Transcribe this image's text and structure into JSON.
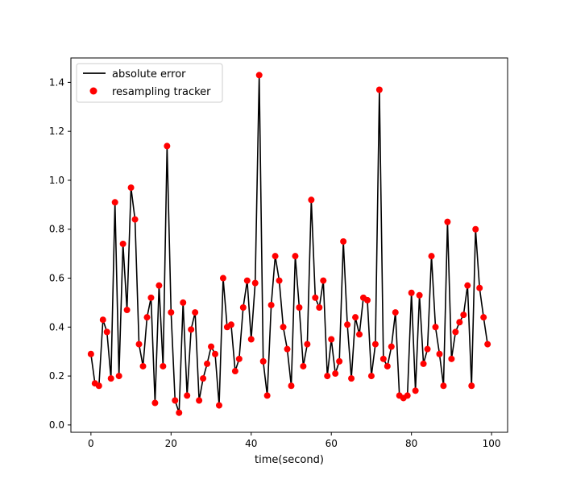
{
  "chart_data": {
    "type": "line",
    "title": "",
    "xlabel": "time(second)",
    "ylabel": "",
    "xlim": [
      -5,
      104
    ],
    "ylim": [
      -0.03,
      1.5
    ],
    "xticks": [
      0,
      20,
      40,
      60,
      80,
      100
    ],
    "xtick_labels": [
      "0",
      "20",
      "40",
      "60",
      "80",
      "100"
    ],
    "yticks": [
      0.0,
      0.2,
      0.4,
      0.6,
      0.8,
      1.0,
      1.2,
      1.4
    ],
    "ytick_labels": [
      "0.0",
      "0.2",
      "0.4",
      "0.6",
      "0.8",
      "1.0",
      "1.2",
      "1.4"
    ],
    "grid": false,
    "legend_position": "upper-left",
    "series": [
      {
        "name": "absolute error",
        "style": "line",
        "color": "#000000",
        "x": [
          0,
          1,
          2,
          3,
          4,
          5,
          6,
          7,
          8,
          9,
          10,
          11,
          12,
          13,
          14,
          15,
          16,
          17,
          18,
          19,
          20,
          21,
          22,
          23,
          24,
          25,
          26,
          27,
          28,
          29,
          30,
          31,
          32,
          33,
          34,
          35,
          36,
          37,
          38,
          39,
          40,
          41,
          42,
          43,
          44,
          45,
          46,
          47,
          48,
          49,
          50,
          51,
          52,
          53,
          54,
          55,
          56,
          57,
          58,
          59,
          60,
          61,
          62,
          63,
          64,
          65,
          66,
          67,
          68,
          69,
          70,
          71,
          72,
          73,
          74,
          75,
          76,
          77,
          78,
          79,
          80,
          81,
          82,
          83,
          84,
          85,
          86,
          87,
          88,
          89,
          90,
          91,
          92,
          93,
          94,
          95,
          96,
          97,
          98,
          99
        ],
        "y": [
          0.29,
          0.17,
          0.16,
          0.43,
          0.38,
          0.19,
          0.91,
          0.2,
          0.74,
          0.47,
          0.97,
          0.84,
          0.33,
          0.24,
          0.44,
          0.52,
          0.09,
          0.57,
          0.24,
          1.14,
          0.46,
          0.1,
          0.05,
          0.5,
          0.12,
          0.39,
          0.46,
          0.1,
          0.19,
          0.25,
          0.32,
          0.29,
          0.08,
          0.6,
          0.4,
          0.41,
          0.22,
          0.27,
          0.48,
          0.59,
          0.35,
          0.58,
          1.43,
          0.26,
          0.12,
          0.49,
          0.69,
          0.59,
          0.4,
          0.31,
          0.16,
          0.69,
          0.48,
          0.24,
          0.33,
          0.92,
          0.52,
          0.48,
          0.59,
          0.2,
          0.35,
          0.21,
          0.26,
          0.75,
          0.41,
          0.19,
          0.44,
          0.37,
          0.52,
          0.51,
          0.2,
          0.33,
          1.37,
          0.27,
          0.24,
          0.32,
          0.46,
          0.12,
          0.11,
          0.12,
          0.54,
          0.14,
          0.53,
          0.25,
          0.31,
          0.69,
          0.4,
          0.29,
          0.16,
          0.83,
          0.27,
          0.38,
          0.42,
          0.45,
          0.57,
          0.16,
          0.8,
          0.56,
          0.44,
          0.33
        ]
      },
      {
        "name": "resampling tracker",
        "style": "scatter",
        "color": "#ff0000",
        "x": [
          0,
          1,
          2,
          3,
          4,
          5,
          6,
          7,
          8,
          9,
          10,
          11,
          12,
          13,
          14,
          15,
          16,
          17,
          18,
          19,
          20,
          21,
          22,
          23,
          24,
          25,
          26,
          27,
          28,
          29,
          30,
          31,
          32,
          33,
          34,
          35,
          36,
          37,
          38,
          39,
          40,
          41,
          42,
          43,
          44,
          45,
          46,
          47,
          48,
          49,
          50,
          51,
          52,
          53,
          54,
          55,
          56,
          57,
          58,
          59,
          60,
          61,
          62,
          63,
          64,
          65,
          66,
          67,
          68,
          69,
          70,
          71,
          72,
          73,
          74,
          75,
          76,
          77,
          78,
          79,
          80,
          81,
          82,
          83,
          84,
          85,
          86,
          87,
          88,
          89,
          90,
          91,
          92,
          93,
          94,
          95,
          96,
          97,
          98,
          99
        ],
        "y": [
          0.29,
          0.17,
          0.16,
          0.43,
          0.38,
          0.19,
          0.91,
          0.2,
          0.74,
          0.47,
          0.97,
          0.84,
          0.33,
          0.24,
          0.44,
          0.52,
          0.09,
          0.57,
          0.24,
          1.14,
          0.46,
          0.1,
          0.05,
          0.5,
          0.12,
          0.39,
          0.46,
          0.1,
          0.19,
          0.25,
          0.32,
          0.29,
          0.08,
          0.6,
          0.4,
          0.41,
          0.22,
          0.27,
          0.48,
          0.59,
          0.35,
          0.58,
          1.43,
          0.26,
          0.12,
          0.49,
          0.69,
          0.59,
          0.4,
          0.31,
          0.16,
          0.69,
          0.48,
          0.24,
          0.33,
          0.92,
          0.52,
          0.48,
          0.59,
          0.2,
          0.35,
          0.21,
          0.26,
          0.75,
          0.41,
          0.19,
          0.44,
          0.37,
          0.52,
          0.51,
          0.2,
          0.33,
          1.37,
          0.27,
          0.24,
          0.32,
          0.46,
          0.12,
          0.11,
          0.12,
          0.54,
          0.14,
          0.53,
          0.25,
          0.31,
          0.69,
          0.4,
          0.29,
          0.16,
          0.83,
          0.27,
          0.38,
          0.42,
          0.45,
          0.57,
          0.16,
          0.8,
          0.56,
          0.44,
          0.33
        ]
      }
    ]
  }
}
